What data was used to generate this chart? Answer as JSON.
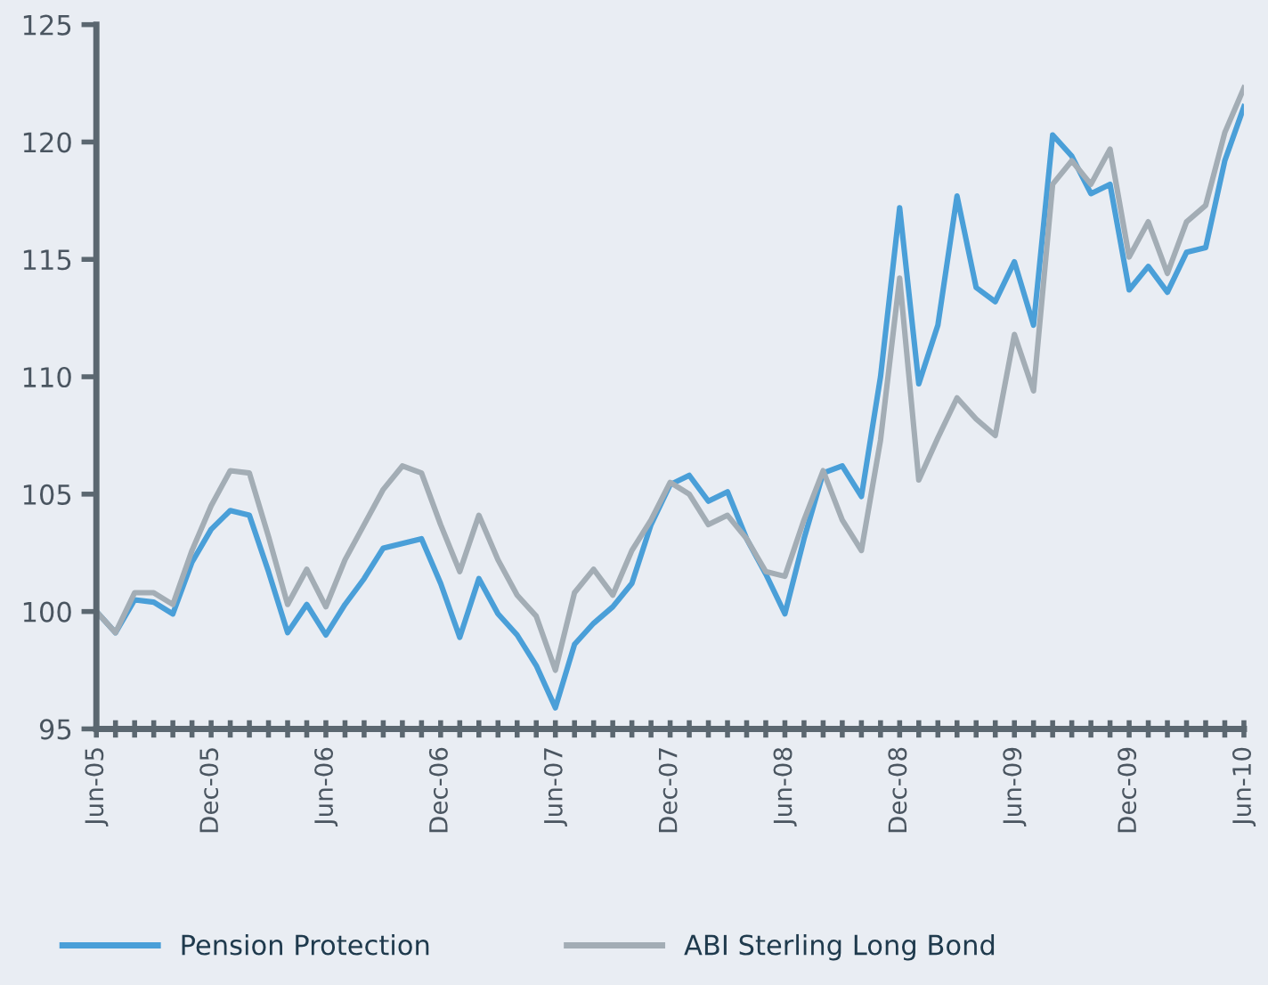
{
  "chart_data": {
    "type": "line",
    "categories": [
      "Jun-05",
      null,
      null,
      null,
      null,
      null,
      "Dec-05",
      null,
      null,
      null,
      null,
      null,
      "Jun-06",
      null,
      null,
      null,
      null,
      null,
      "Dec-06",
      null,
      null,
      null,
      null,
      null,
      "Jun-07",
      null,
      null,
      null,
      null,
      null,
      "Dec-07",
      null,
      null,
      null,
      null,
      null,
      "Jun-08",
      null,
      null,
      null,
      null,
      null,
      "Dec-08",
      null,
      null,
      null,
      null,
      null,
      "Jun-09",
      null,
      null,
      null,
      null,
      null,
      "Dec-09",
      null,
      null,
      null,
      null,
      null,
      "Jun-10"
    ],
    "series": [
      {
        "name": "Pension Protection",
        "color": "#4a9fd8",
        "values": [
          100.0,
          99.1,
          100.5,
          100.4,
          99.9,
          102.1,
          103.5,
          104.3,
          104.1,
          101.7,
          99.1,
          100.3,
          99.0,
          100.3,
          101.4,
          102.7,
          102.9,
          103.1,
          101.2,
          98.9,
          101.4,
          99.9,
          99.0,
          97.7,
          95.9,
          98.6,
          99.5,
          100.2,
          101.2,
          103.7,
          105.4,
          105.8,
          104.7,
          105.1,
          103.1,
          101.6,
          99.9,
          103.1,
          105.9,
          106.2,
          104.9,
          110.0,
          117.2,
          109.7,
          112.2,
          117.7,
          113.8,
          113.2,
          114.9,
          112.2,
          120.3,
          119.4,
          117.8,
          118.2,
          113.7,
          114.7,
          113.6,
          115.3,
          115.5,
          119.2,
          121.5
        ]
      },
      {
        "name": "ABI Sterling Long Bond",
        "color": "#a3adb5",
        "values": [
          100.0,
          99.1,
          100.8,
          100.8,
          100.3,
          102.6,
          104.5,
          106.0,
          105.9,
          103.2,
          100.3,
          101.8,
          100.2,
          102.2,
          103.7,
          105.2,
          106.2,
          105.9,
          103.7,
          101.7,
          104.1,
          102.2,
          100.7,
          99.8,
          97.5,
          100.8,
          101.8,
          100.7,
          102.6,
          103.9,
          105.5,
          105.0,
          103.7,
          104.1,
          103.1,
          101.7,
          101.5,
          103.9,
          106.0,
          103.9,
          102.6,
          107.3,
          114.2,
          105.6,
          107.4,
          109.1,
          108.2,
          107.5,
          111.8,
          109.4,
          118.2,
          119.2,
          118.2,
          119.7,
          115.1,
          116.6,
          114.4,
          116.6,
          117.3,
          120.4,
          122.3
        ]
      }
    ],
    "ylim": [
      95,
      125
    ],
    "yticks": [
      95,
      100,
      105,
      110,
      115,
      120,
      125
    ],
    "grid": false,
    "legend": "bottom",
    "marker": "none",
    "line_style": "solid"
  }
}
